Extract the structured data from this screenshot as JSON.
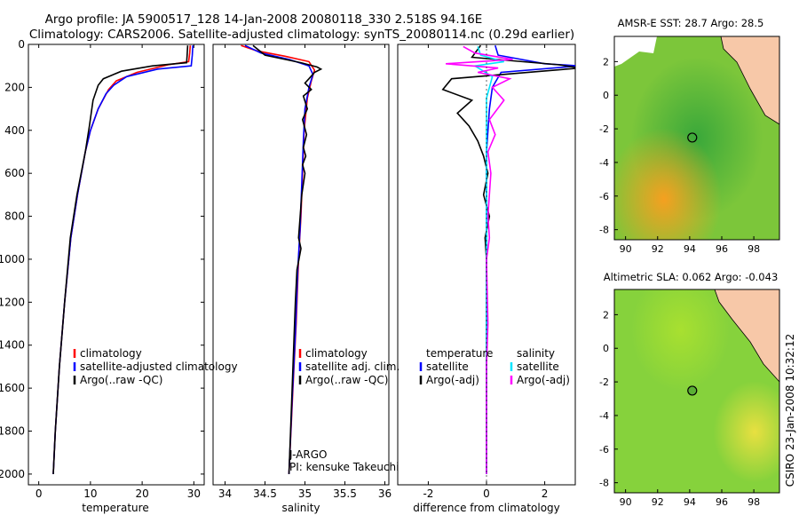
{
  "title_line1": "Argo profile: JA 5900517_128 14-Jan-2008 20080118_330 2.518S 94.16E",
  "title_line2": "Climatology: CARS2006. Satellite-adjusted climatology: synTS_20080114.nc (0.29d earlier)",
  "footer_right": "CSIRO 23-Jan-2008 10:32:12",
  "colors": {
    "clim": "#ff0000",
    "sat": "#0000ff",
    "argo": "#000000",
    "sat_diff": "#00e5ff",
    "argo_adj": "#ff00ff"
  },
  "chart_data": [
    {
      "type": "line",
      "name": "temperature",
      "xlabel": "temperature",
      "xlim": [
        -2,
        32
      ],
      "ylim": [
        2050,
        0
      ],
      "xticks": [
        0,
        10,
        20,
        30
      ],
      "yticks": [
        0,
        200,
        400,
        600,
        800,
        1000,
        1200,
        1400,
        1600,
        1800,
        2000
      ],
      "legend": [
        "climatology",
        "satellite-adjusted climatology",
        "Argo(..raw -QC)"
      ],
      "series": [
        {
          "name": "climatology",
          "color": "clim",
          "points": [
            [
              29.3,
              5
            ],
            [
              29.2,
              40
            ],
            [
              29.0,
              80
            ],
            [
              25,
              95
            ],
            [
              19,
              130
            ],
            [
              15,
              170
            ],
            [
              13.5,
              210
            ],
            [
              11.5,
              300
            ],
            [
              10,
              400
            ],
            [
              9,
              500
            ],
            [
              7.5,
              700
            ],
            [
              6.2,
              900
            ],
            [
              5,
              1200
            ],
            [
              4,
              1500
            ],
            [
              3.2,
              1800
            ],
            [
              2.8,
              2000
            ]
          ]
        },
        {
          "name": "satellite-adjusted climatology",
          "color": "sat",
          "points": [
            [
              29.8,
              5
            ],
            [
              29.7,
              50
            ],
            [
              29.5,
              100
            ],
            [
              23,
              115
            ],
            [
              17,
              150
            ],
            [
              14.5,
              190
            ],
            [
              13,
              230
            ],
            [
              11.5,
              300
            ],
            [
              10,
              400
            ],
            [
              9,
              500
            ],
            [
              7.5,
              700
            ],
            [
              6.2,
              900
            ],
            [
              5,
              1200
            ],
            [
              4,
              1500
            ],
            [
              3.2,
              1800
            ],
            [
              2.8,
              2000
            ]
          ]
        },
        {
          "name": "Argo(..raw -QC)",
          "color": "argo",
          "points": [
            [
              28.8,
              5
            ],
            [
              28.7,
              50
            ],
            [
              28.6,
              85
            ],
            [
              22,
              100
            ],
            [
              16,
              125
            ],
            [
              12.5,
              160
            ],
            [
              11.5,
              190
            ],
            [
              10.5,
              260
            ],
            [
              9.8,
              380
            ],
            [
              9,
              500
            ],
            [
              7.4,
              700
            ],
            [
              6.1,
              900
            ],
            [
              5,
              1200
            ],
            [
              4,
              1500
            ],
            [
              3.2,
              1800
            ],
            [
              2.8,
              2000
            ]
          ]
        }
      ]
    },
    {
      "type": "line",
      "name": "salinity",
      "xlabel": "salinity",
      "xlim": [
        33.85,
        36.05
      ],
      "ylim": [
        2050,
        0
      ],
      "xticks": [
        34,
        34.5,
        35,
        35.5,
        36
      ],
      "xtick_labels": [
        "34",
        "34.5",
        "35",
        "35.5",
        "36"
      ],
      "legend": [
        "climatology",
        "satellite adj. clim.",
        "Argo(..raw -QC)"
      ],
      "annotation": [
        "J-ARGO",
        "PI: kensuke Takeuchi"
      ],
      "series": [
        {
          "name": "climatology",
          "color": "clim",
          "points": [
            [
              34.2,
              5
            ],
            [
              34.4,
              30
            ],
            [
              34.75,
              55
            ],
            [
              35.05,
              80
            ],
            [
              35.12,
              120
            ],
            [
              35.08,
              170
            ],
            [
              35.03,
              250
            ],
            [
              34.99,
              400
            ],
            [
              34.97,
              600
            ],
            [
              34.95,
              800
            ],
            [
              34.92,
              1000
            ],
            [
              34.89,
              1300
            ],
            [
              34.85,
              1600
            ],
            [
              34.8,
              2000
            ]
          ]
        },
        {
          "name": "satellite adj. clim.",
          "color": "sat",
          "points": [
            [
              34.25,
              5
            ],
            [
              34.45,
              40
            ],
            [
              34.8,
              70
            ],
            [
              35.05,
              100
            ],
            [
              35.1,
              140
            ],
            [
              35.05,
              200
            ],
            [
              35.0,
              300
            ],
            [
              34.98,
              450
            ],
            [
              34.96,
              650
            ],
            [
              34.94,
              850
            ],
            [
              34.91,
              1050
            ],
            [
              34.88,
              1350
            ],
            [
              34.84,
              1650
            ],
            [
              34.8,
              2000
            ]
          ]
        },
        {
          "name": "Argo(..raw -QC)",
          "color": "argo",
          "points": [
            [
              34.35,
              5
            ],
            [
              34.5,
              50
            ],
            [
              34.95,
              85
            ],
            [
              35.15,
              105
            ],
            [
              35.2,
              115
            ],
            [
              35.12,
              130
            ],
            [
              35.05,
              160
            ],
            [
              35.0,
              180
            ],
            [
              35.08,
              210
            ],
            [
              34.98,
              240
            ],
            [
              35.03,
              300
            ],
            [
              34.97,
              350
            ],
            [
              35.02,
              420
            ],
            [
              34.98,
              480
            ],
            [
              35.01,
              520
            ],
            [
              34.97,
              560
            ],
            [
              35.0,
              600
            ],
            [
              34.96,
              700
            ],
            [
              34.94,
              800
            ],
            [
              34.92,
              900
            ],
            [
              34.95,
              950
            ],
            [
              34.9,
              1050
            ],
            [
              34.88,
              1200
            ],
            [
              34.86,
              1400
            ],
            [
              34.84,
              1600
            ],
            [
              34.82,
              1800
            ],
            [
              34.8,
              2000
            ]
          ]
        }
      ]
    },
    {
      "type": "line",
      "name": "difference",
      "xlabel": "difference from climatology",
      "xlim": [
        -3.05,
        3.05
      ],
      "ylim": [
        2050,
        0
      ],
      "xticks": [
        -2,
        0,
        2
      ],
      "legend_left": [
        "temperature",
        "satellite",
        "Argo(-adj)"
      ],
      "legend_right": [
        "salinity",
        "satellite",
        "Argo(-adj)"
      ],
      "series": [
        {
          "name": "temperature satellite",
          "color": "sat",
          "points": [
            [
              0.3,
              5
            ],
            [
              0.4,
              50
            ],
            [
              2,
              90
            ],
            [
              3.2,
              100
            ],
            [
              0.5,
              130
            ],
            [
              0.2,
              200
            ],
            [
              0.1,
              300
            ],
            [
              0,
              500
            ],
            [
              0,
              1000
            ],
            [
              0,
              1500
            ],
            [
              0,
              2000
            ]
          ]
        },
        {
          "name": "temperature Argo(-adj)",
          "color": "argo",
          "points": [
            [
              -0.2,
              5
            ],
            [
              -0.5,
              60
            ],
            [
              2.5,
              95
            ],
            [
              3.2,
              110
            ],
            [
              -1.2,
              160
            ],
            [
              -1.5,
              210
            ],
            [
              -0.5,
              260
            ],
            [
              -1.0,
              320
            ],
            [
              -0.6,
              380
            ],
            [
              -0.3,
              450
            ],
            [
              -0.1,
              520
            ],
            [
              0.05,
              600
            ],
            [
              -0.1,
              700
            ],
            [
              0.1,
              800
            ],
            [
              -0.05,
              900
            ],
            [
              0,
              1000
            ],
            [
              0,
              1200
            ],
            [
              0,
              1500
            ],
            [
              0,
              2000
            ]
          ]
        },
        {
          "name": "salinity satellite",
          "color": "sat_diff",
          "points": [
            [
              -0.3,
              10
            ],
            [
              -0.2,
              50
            ],
            [
              0.6,
              80
            ],
            [
              -0.4,
              100
            ],
            [
              0.2,
              150
            ],
            [
              0,
              250
            ],
            [
              0,
              500
            ],
            [
              0,
              1000
            ],
            [
              0,
              1500
            ],
            [
              0,
              2000
            ]
          ]
        },
        {
          "name": "salinity Argo(-adj)",
          "color": "argo_adj",
          "points": [
            [
              -0.8,
              10
            ],
            [
              -0.4,
              40
            ],
            [
              0.9,
              70
            ],
            [
              -1.4,
              90
            ],
            [
              0.4,
              110
            ],
            [
              -0.3,
              130
            ],
            [
              0.8,
              160
            ],
            [
              0.2,
              200
            ],
            [
              0.6,
              260
            ],
            [
              0.1,
              350
            ],
            [
              0.3,
              420
            ],
            [
              0.05,
              500
            ],
            [
              0.15,
              600
            ],
            [
              0.05,
              800
            ],
            [
              0.1,
              900
            ],
            [
              0,
              1000
            ],
            [
              0.05,
              1300
            ],
            [
              0,
              1500
            ],
            [
              0,
              2000
            ]
          ]
        }
      ]
    },
    {
      "type": "heatmap",
      "name": "sst_map",
      "title": "AMSR-E SST: 28.7 Argo: 28.5",
      "xlim": [
        89.3,
        99.6
      ],
      "ylim": [
        -8.6,
        3.5
      ],
      "xticks": [
        90,
        92,
        94,
        96,
        98
      ],
      "yticks": [
        -8,
        -6,
        -4,
        -2,
        0,
        2
      ],
      "marker": [
        94.16,
        -2.52
      ]
    },
    {
      "type": "heatmap",
      "name": "sla_map",
      "title": "Altimetric SLA: 0.062 Argo: -0.043",
      "xlim": [
        89.3,
        99.6
      ],
      "ylim": [
        -8.6,
        3.5
      ],
      "xticks": [
        90,
        92,
        94,
        96,
        98
      ],
      "yticks": [
        -8,
        -6,
        -4,
        -2,
        0,
        2
      ],
      "marker": [
        94.16,
        -2.52
      ]
    }
  ]
}
